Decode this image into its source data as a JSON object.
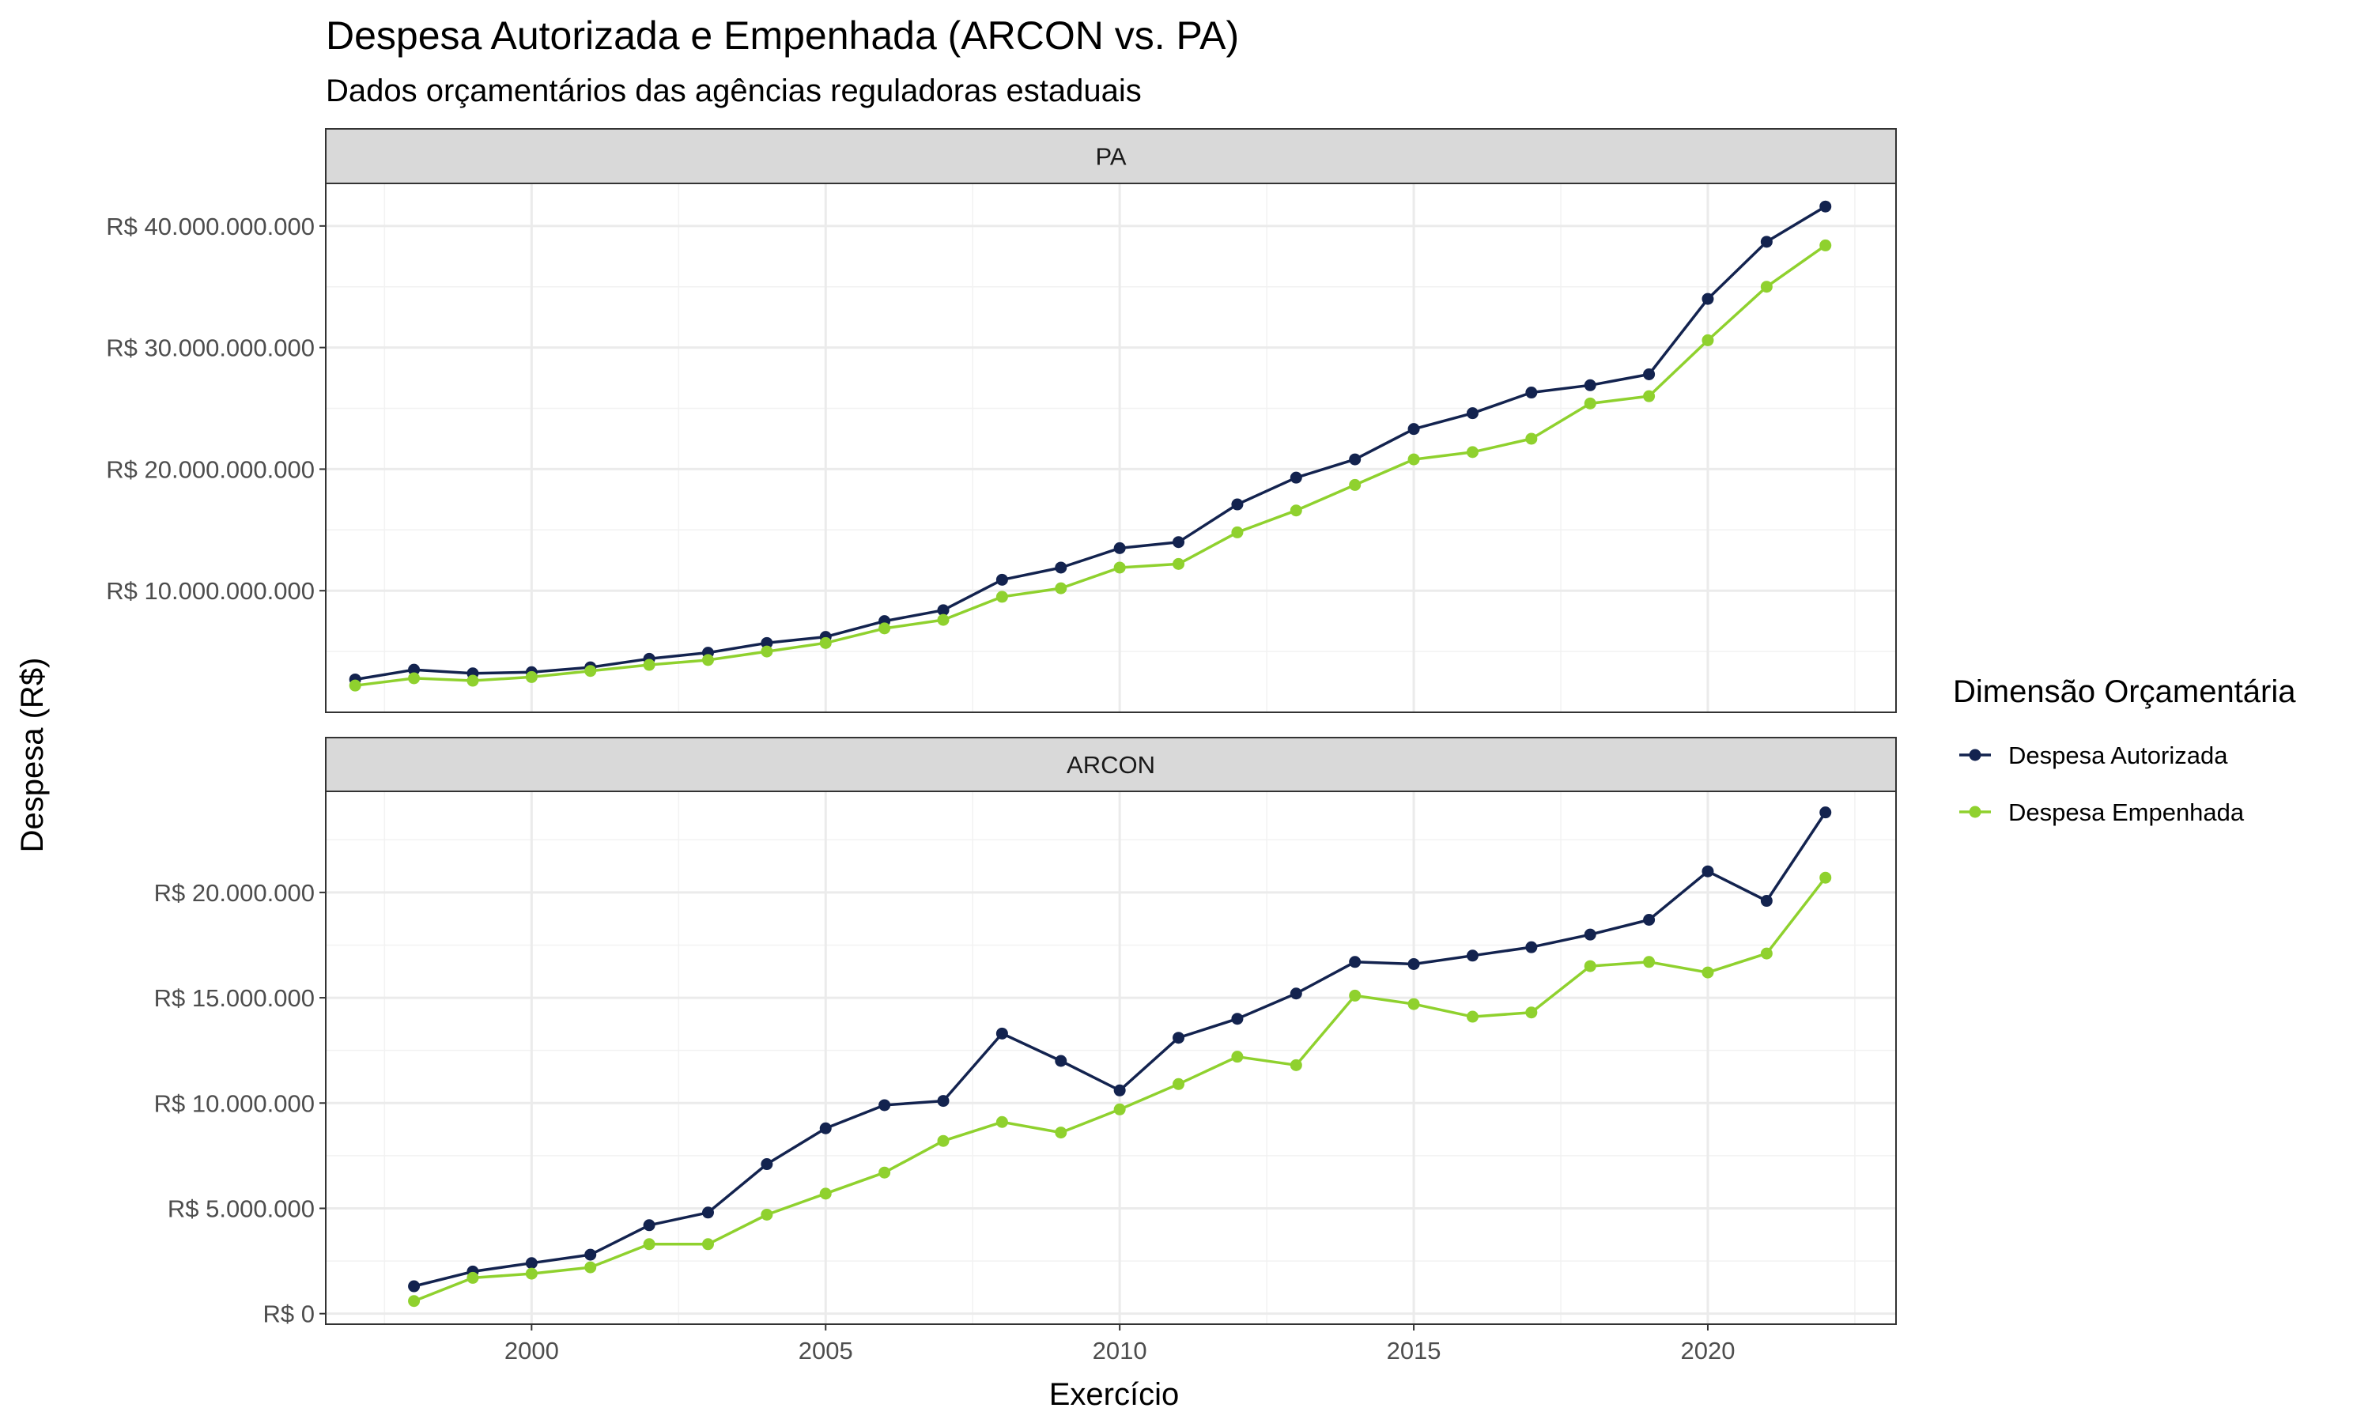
{
  "title": "Despesa Autorizada e Empenhada (ARCON vs. PA)",
  "subtitle": "Dados orçamentários das agências reguladoras estaduais",
  "xlabel": "Exercício",
  "ylabel": "Despesa (R$)",
  "legend": {
    "title": "Dimensão Orçamentária",
    "placement": "right",
    "items": [
      {
        "label": "Despesa Autorizada",
        "color": "#13234f"
      },
      {
        "label": "Despesa Empenhada",
        "color": "#8fd12e"
      }
    ]
  },
  "chart_data": {
    "type": "line",
    "facet_layout": "vertical",
    "grid": true,
    "x_ticks": [
      2000,
      2005,
      2010,
      2015,
      2020
    ],
    "xlim": [
      1996.5,
      2023.2
    ],
    "panels": [
      {
        "strip_label": "PA",
        "ylim": [
          0,
          43500000000
        ],
        "y_ticks": [
          10000000000,
          20000000000,
          30000000000,
          40000000000
        ],
        "y_tick_labels": [
          "R$ 10.000.000.000",
          "R$ 20.000.000.000",
          "R$ 30.000.000.000",
          "R$ 40.000.000.000"
        ],
        "x": [
          1997,
          1998,
          1999,
          2000,
          2001,
          2002,
          2003,
          2004,
          2005,
          2006,
          2007,
          2008,
          2009,
          2010,
          2011,
          2012,
          2013,
          2014,
          2015,
          2016,
          2017,
          2018,
          2019,
          2020,
          2021,
          2022
        ],
        "series": [
          {
            "name": "Despesa Autorizada",
            "color": "#13234f",
            "values": [
              2700000000,
              3500000000,
              3200000000,
              3300000000,
              3700000000,
              4400000000,
              4900000000,
              5700000000,
              6200000000,
              7500000000,
              8400000000,
              10900000000,
              11900000000,
              13500000000,
              14000000000,
              17100000000,
              19300000000,
              20800000000,
              23300000000,
              24600000000,
              26300000000,
              26900000000,
              27800000000,
              34000000000,
              38700000000,
              41600000000
            ]
          },
          {
            "name": "Despesa Empenhada",
            "color": "#8fd12e",
            "values": [
              2200000000,
              2800000000,
              2600000000,
              2900000000,
              3400000000,
              3900000000,
              4300000000,
              5000000000,
              5700000000,
              6900000000,
              7600000000,
              9500000000,
              10200000000,
              11900000000,
              12200000000,
              14800000000,
              16600000000,
              18700000000,
              20800000000,
              21400000000,
              22500000000,
              25400000000,
              26000000000,
              30600000000,
              35000000000,
              38400000000
            ]
          }
        ]
      },
      {
        "strip_label": "ARCON",
        "ylim": [
          -500000,
          24800000
        ],
        "y_ticks": [
          0,
          5000000,
          10000000,
          15000000,
          20000000
        ],
        "y_tick_labels": [
          "R$ 0",
          "R$ 5.000.000",
          "R$ 10.000.000",
          "R$ 15.000.000",
          "R$ 20.000.000"
        ],
        "x": [
          1998,
          1999,
          2000,
          2001,
          2002,
          2003,
          2004,
          2005,
          2006,
          2007,
          2008,
          2009,
          2010,
          2011,
          2012,
          2013,
          2014,
          2015,
          2016,
          2017,
          2018,
          2019,
          2020,
          2021,
          2022
        ],
        "series": [
          {
            "name": "Despesa Autorizada",
            "color": "#13234f",
            "values": [
              1300000,
              2000000,
              2400000,
              2800000,
              4200000,
              4800000,
              7100000,
              8800000,
              9900000,
              10100000,
              13300000,
              12000000,
              10600000,
              13100000,
              14000000,
              15200000,
              16700000,
              16600000,
              17000000,
              17400000,
              18000000,
              18700000,
              21000000,
              19600000,
              23800000
            ]
          },
          {
            "name": "Despesa Empenhada",
            "color": "#8fd12e",
            "values": [
              600000,
              1700000,
              1900000,
              2200000,
              3300000,
              3300000,
              4700000,
              5700000,
              6700000,
              8200000,
              9100000,
              8600000,
              9700000,
              10900000,
              12200000,
              11800000,
              15100000,
              14700000,
              14100000,
              14300000,
              16500000,
              16700000,
              16200000,
              17100000,
              20700000
            ]
          }
        ]
      }
    ]
  }
}
